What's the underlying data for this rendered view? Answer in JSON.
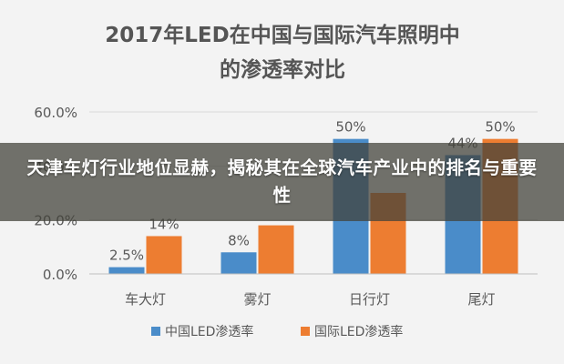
{
  "chart_data": {
    "type": "bar",
    "title_line1": "2017年LED在中国与国际汽车照明中",
    "title_line2": "的渗透率对比",
    "categories": [
      "车大灯",
      "雾灯",
      "日行灯",
      "尾灯"
    ],
    "series": [
      {
        "name": "中国LED渗透率",
        "values": [
          2.5,
          8,
          50,
          44
        ],
        "labels": [
          "2.5%",
          "8%",
          "50%",
          "44%"
        ],
        "color": "#4a8cc9"
      },
      {
        "name": "国际LED渗透率",
        "values": [
          14,
          18,
          30,
          50
        ],
        "labels": [
          "14%",
          "",
          "",
          "50%"
        ],
        "color": "#ed7d31"
      }
    ],
    "yticks": [
      "0.0%",
      "20.0%",
      "40.0%",
      "60.0%"
    ],
    "ytick_values": [
      0,
      20,
      40,
      60
    ],
    "ylim": [
      0,
      60
    ],
    "grid": true,
    "legend_position": "bottom"
  },
  "overlay": {
    "headline": "天津车灯行业地位显赫，揭秘其在全球汽车产业中的排名与重要性"
  }
}
